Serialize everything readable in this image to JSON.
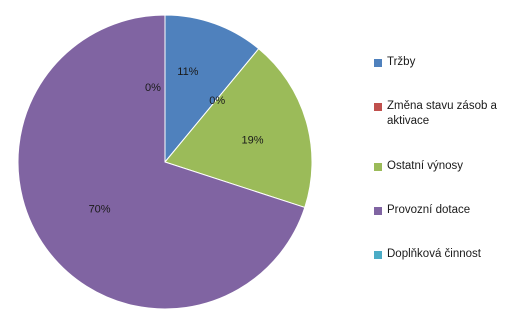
{
  "chart_data": {
    "type": "pie",
    "categories": [
      "Tržby",
      "Změna stavu zásob a aktivace",
      "Ostatní výnosy",
      "Provozní dotace",
      "Doplňková činnost"
    ],
    "values": [
      11,
      0,
      19,
      70,
      0
    ],
    "data_labels": [
      "11%",
      "0%",
      "19%",
      "70%",
      "0%"
    ],
    "colors": [
      "#4f81bd",
      "#c0504d",
      "#9bbb59",
      "#8064a2",
      "#4bacc6"
    ],
    "start_angle_deg": 0,
    "direction": "clockwise",
    "legend_position": "right",
    "title": ""
  }
}
